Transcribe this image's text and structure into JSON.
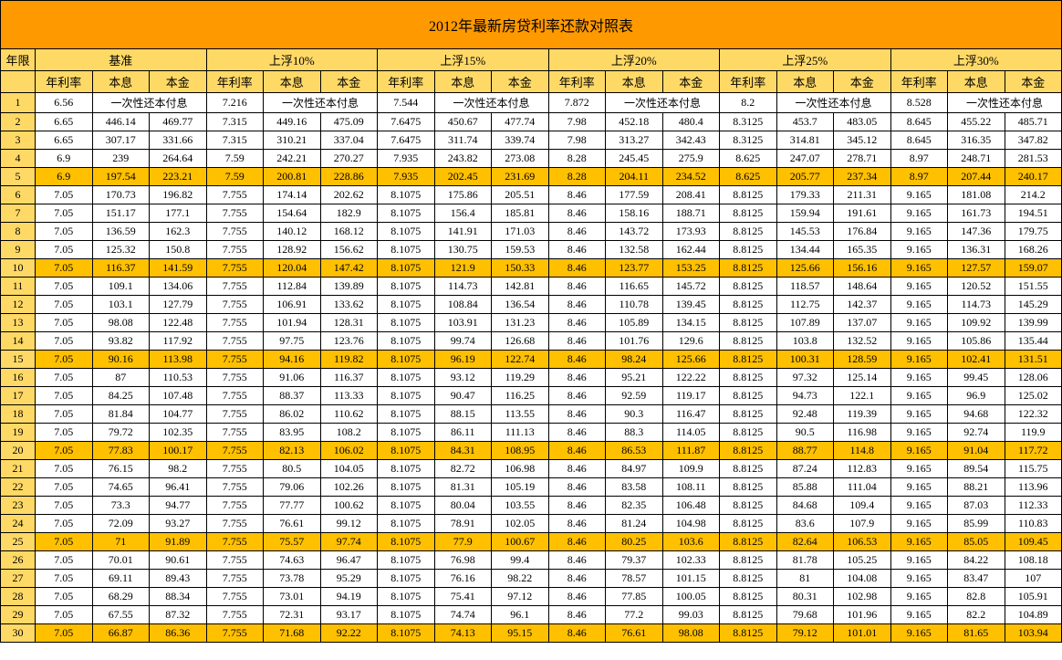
{
  "title": "2012年最新房贷利率还款对照表",
  "colors": {
    "title_bg": "#ff9900",
    "header_bg": "#ffd966",
    "hl_row_bg": "#ffc000",
    "normal_bg": "#ffffff"
  },
  "year_header": "年限",
  "groups": [
    {
      "label": "基准",
      "sub": [
        "年利率",
        "本息",
        "本金"
      ]
    },
    {
      "label": "上浮10%",
      "sub": [
        "年利率",
        "本息",
        "本金"
      ]
    },
    {
      "label": "上浮15%",
      "sub": [
        "年利率",
        "本息",
        "本金"
      ]
    },
    {
      "label": "上浮20%",
      "sub": [
        "年利率",
        "本息",
        "本金"
      ]
    },
    {
      "label": "上浮25%",
      "sub": [
        "年利率",
        "本息",
        "本金"
      ]
    },
    {
      "label": "上浮30%",
      "sub": [
        "年利率",
        "本息",
        "本金"
      ]
    }
  ],
  "highlight_rows": [
    5,
    10,
    15,
    20,
    25,
    30
  ],
  "rows": [
    {
      "year": 1,
      "cells": [
        "6.56",
        {
          "span": 2,
          "v": "一次性还本付息"
        },
        "7.216",
        {
          "span": 2,
          "v": "一次性还本付息"
        },
        "7.544",
        {
          "span": 2,
          "v": "一次性还本付息"
        },
        "7.872",
        {
          "span": 2,
          "v": "一次性还本付息"
        },
        "8.2",
        {
          "span": 2,
          "v": "一次性还本付息"
        },
        "8.528",
        {
          "span": 2,
          "v": "一次性还本付息"
        }
      ]
    },
    {
      "year": 2,
      "cells": [
        "6.65",
        "446.14",
        "469.77",
        "7.315",
        "449.16",
        "475.09",
        "7.6475",
        "450.67",
        "477.74",
        "7.98",
        "452.18",
        "480.4",
        "8.3125",
        "453.7",
        "483.05",
        "8.645",
        "455.22",
        "485.71"
      ]
    },
    {
      "year": 3,
      "cells": [
        "6.65",
        "307.17",
        "331.66",
        "7.315",
        "310.21",
        "337.04",
        "7.6475",
        "311.74",
        "339.74",
        "7.98",
        "313.27",
        "342.43",
        "8.3125",
        "314.81",
        "345.12",
        "8.645",
        "316.35",
        "347.82"
      ]
    },
    {
      "year": 4,
      "cells": [
        "6.9",
        "239",
        "264.64",
        "7.59",
        "242.21",
        "270.27",
        "7.935",
        "243.82",
        "273.08",
        "8.28",
        "245.45",
        "275.9",
        "8.625",
        "247.07",
        "278.71",
        "8.97",
        "248.71",
        "281.53"
      ]
    },
    {
      "year": 5,
      "cells": [
        "6.9",
        "197.54",
        "223.21",
        "7.59",
        "200.81",
        "228.86",
        "7.935",
        "202.45",
        "231.69",
        "8.28",
        "204.11",
        "234.52",
        "8.625",
        "205.77",
        "237.34",
        "8.97",
        "207.44",
        "240.17"
      ]
    },
    {
      "year": 6,
      "cells": [
        "7.05",
        "170.73",
        "196.82",
        "7.755",
        "174.14",
        "202.62",
        "8.1075",
        "175.86",
        "205.51",
        "8.46",
        "177.59",
        "208.41",
        "8.8125",
        "179.33",
        "211.31",
        "9.165",
        "181.08",
        "214.2"
      ]
    },
    {
      "year": 7,
      "cells": [
        "7.05",
        "151.17",
        "177.1",
        "7.755",
        "154.64",
        "182.9",
        "8.1075",
        "156.4",
        "185.81",
        "8.46",
        "158.16",
        "188.71",
        "8.8125",
        "159.94",
        "191.61",
        "9.165",
        "161.73",
        "194.51"
      ]
    },
    {
      "year": 8,
      "cells": [
        "7.05",
        "136.59",
        "162.3",
        "7.755",
        "140.12",
        "168.12",
        "8.1075",
        "141.91",
        "171.03",
        "8.46",
        "143.72",
        "173.93",
        "8.8125",
        "145.53",
        "176.84",
        "9.165",
        "147.36",
        "179.75"
      ]
    },
    {
      "year": 9,
      "cells": [
        "7.05",
        "125.32",
        "150.8",
        "7.755",
        "128.92",
        "156.62",
        "8.1075",
        "130.75",
        "159.53",
        "8.46",
        "132.58",
        "162.44",
        "8.8125",
        "134.44",
        "165.35",
        "9.165",
        "136.31",
        "168.26"
      ]
    },
    {
      "year": 10,
      "cells": [
        "7.05",
        "116.37",
        "141.59",
        "7.755",
        "120.04",
        "147.42",
        "8.1075",
        "121.9",
        "150.33",
        "8.46",
        "123.77",
        "153.25",
        "8.8125",
        "125.66",
        "156.16",
        "9.165",
        "127.57",
        "159.07"
      ]
    },
    {
      "year": 11,
      "cells": [
        "7.05",
        "109.1",
        "134.06",
        "7.755",
        "112.84",
        "139.89",
        "8.1075",
        "114.73",
        "142.81",
        "8.46",
        "116.65",
        "145.72",
        "8.8125",
        "118.57",
        "148.64",
        "9.165",
        "120.52",
        "151.55"
      ]
    },
    {
      "year": 12,
      "cells": [
        "7.05",
        "103.1",
        "127.79",
        "7.755",
        "106.91",
        "133.62",
        "8.1075",
        "108.84",
        "136.54",
        "8.46",
        "110.78",
        "139.45",
        "8.8125",
        "112.75",
        "142.37",
        "9.165",
        "114.73",
        "145.29"
      ]
    },
    {
      "year": 13,
      "cells": [
        "7.05",
        "98.08",
        "122.48",
        "7.755",
        "101.94",
        "128.31",
        "8.1075",
        "103.91",
        "131.23",
        "8.46",
        "105.89",
        "134.15",
        "8.8125",
        "107.89",
        "137.07",
        "9.165",
        "109.92",
        "139.99"
      ]
    },
    {
      "year": 14,
      "cells": [
        "7.05",
        "93.82",
        "117.92",
        "7.755",
        "97.75",
        "123.76",
        "8.1075",
        "99.74",
        "126.68",
        "8.46",
        "101.76",
        "129.6",
        "8.8125",
        "103.8",
        "132.52",
        "9.165",
        "105.86",
        "135.44"
      ]
    },
    {
      "year": 15,
      "cells": [
        "7.05",
        "90.16",
        "113.98",
        "7.755",
        "94.16",
        "119.82",
        "8.1075",
        "96.19",
        "122.74",
        "8.46",
        "98.24",
        "125.66",
        "8.8125",
        "100.31",
        "128.59",
        "9.165",
        "102.41",
        "131.51"
      ]
    },
    {
      "year": 16,
      "cells": [
        "7.05",
        "87",
        "110.53",
        "7.755",
        "91.06",
        "116.37",
        "8.1075",
        "93.12",
        "119.29",
        "8.46",
        "95.21",
        "122.22",
        "8.8125",
        "97.32",
        "125.14",
        "9.165",
        "99.45",
        "128.06"
      ]
    },
    {
      "year": 17,
      "cells": [
        "7.05",
        "84.25",
        "107.48",
        "7.755",
        "88.37",
        "113.33",
        "8.1075",
        "90.47",
        "116.25",
        "8.46",
        "92.59",
        "119.17",
        "8.8125",
        "94.73",
        "122.1",
        "9.165",
        "96.9",
        "125.02"
      ]
    },
    {
      "year": 18,
      "cells": [
        "7.05",
        "81.84",
        "104.77",
        "7.755",
        "86.02",
        "110.62",
        "8.1075",
        "88.15",
        "113.55",
        "8.46",
        "90.3",
        "116.47",
        "8.8125",
        "92.48",
        "119.39",
        "9.165",
        "94.68",
        "122.32"
      ]
    },
    {
      "year": 19,
      "cells": [
        "7.05",
        "79.72",
        "102.35",
        "7.755",
        "83.95",
        "108.2",
        "8.1075",
        "86.11",
        "111.13",
        "8.46",
        "88.3",
        "114.05",
        "8.8125",
        "90.5",
        "116.98",
        "9.165",
        "92.74",
        "119.9"
      ]
    },
    {
      "year": 20,
      "cells": [
        "7.05",
        "77.83",
        "100.17",
        "7.755",
        "82.13",
        "106.02",
        "8.1075",
        "84.31",
        "108.95",
        "8.46",
        "86.53",
        "111.87",
        "8.8125",
        "88.77",
        "114.8",
        "9.165",
        "91.04",
        "117.72"
      ]
    },
    {
      "year": 21,
      "cells": [
        "7.05",
        "76.15",
        "98.2",
        "7.755",
        "80.5",
        "104.05",
        "8.1075",
        "82.72",
        "106.98",
        "8.46",
        "84.97",
        "109.9",
        "8.8125",
        "87.24",
        "112.83",
        "9.165",
        "89.54",
        "115.75"
      ]
    },
    {
      "year": 22,
      "cells": [
        "7.05",
        "74.65",
        "96.41",
        "7.755",
        "79.06",
        "102.26",
        "8.1075",
        "81.31",
        "105.19",
        "8.46",
        "83.58",
        "108.11",
        "8.8125",
        "85.88",
        "111.04",
        "9.165",
        "88.21",
        "113.96"
      ]
    },
    {
      "year": 23,
      "cells": [
        "7.05",
        "73.3",
        "94.77",
        "7.755",
        "77.77",
        "100.62",
        "8.1075",
        "80.04",
        "103.55",
        "8.46",
        "82.35",
        "106.48",
        "8.8125",
        "84.68",
        "109.4",
        "9.165",
        "87.03",
        "112.33"
      ]
    },
    {
      "year": 24,
      "cells": [
        "7.05",
        "72.09",
        "93.27",
        "7.755",
        "76.61",
        "99.12",
        "8.1075",
        "78.91",
        "102.05",
        "8.46",
        "81.24",
        "104.98",
        "8.8125",
        "83.6",
        "107.9",
        "9.165",
        "85.99",
        "110.83"
      ]
    },
    {
      "year": 25,
      "cells": [
        "7.05",
        "71",
        "91.89",
        "7.755",
        "75.57",
        "97.74",
        "8.1075",
        "77.9",
        "100.67",
        "8.46",
        "80.25",
        "103.6",
        "8.8125",
        "82.64",
        "106.53",
        "9.165",
        "85.05",
        "109.45"
      ]
    },
    {
      "year": 26,
      "cells": [
        "7.05",
        "70.01",
        "90.61",
        "7.755",
        "74.63",
        "96.47",
        "8.1075",
        "76.98",
        "99.4",
        "8.46",
        "79.37",
        "102.33",
        "8.8125",
        "81.78",
        "105.25",
        "9.165",
        "84.22",
        "108.18"
      ]
    },
    {
      "year": 27,
      "cells": [
        "7.05",
        "69.11",
        "89.43",
        "7.755",
        "73.78",
        "95.29",
        "8.1075",
        "76.16",
        "98.22",
        "8.46",
        "78.57",
        "101.15",
        "8.8125",
        "81",
        "104.08",
        "9.165",
        "83.47",
        "107"
      ]
    },
    {
      "year": 28,
      "cells": [
        "7.05",
        "68.29",
        "88.34",
        "7.755",
        "73.01",
        "94.19",
        "8.1075",
        "75.41",
        "97.12",
        "8.46",
        "77.85",
        "100.05",
        "8.8125",
        "80.31",
        "102.98",
        "9.165",
        "82.8",
        "105.91"
      ]
    },
    {
      "year": 29,
      "cells": [
        "7.05",
        "67.55",
        "87.32",
        "7.755",
        "72.31",
        "93.17",
        "8.1075",
        "74.74",
        "96.1",
        "8.46",
        "77.2",
        "99.03",
        "8.8125",
        "79.68",
        "101.96",
        "9.165",
        "82.2",
        "104.89"
      ]
    },
    {
      "year": 30,
      "cells": [
        "7.05",
        "66.87",
        "86.36",
        "7.755",
        "71.68",
        "92.22",
        "8.1075",
        "74.13",
        "95.15",
        "8.46",
        "76.61",
        "98.08",
        "8.8125",
        "79.12",
        "101.01",
        "9.165",
        "81.65",
        "103.94"
      ]
    }
  ]
}
